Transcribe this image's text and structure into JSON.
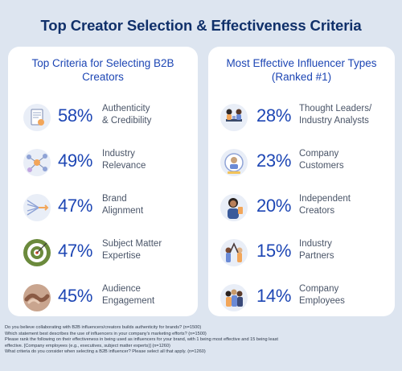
{
  "title": "Top Creator Selection & Effectiveness Criteria",
  "chart_data": [
    {
      "type": "table",
      "title_lines": [
        "Top Criteria for Selecting B2B",
        "Creators"
      ],
      "rows": [
        {
          "value": 58,
          "display": "58%",
          "label_lines": [
            "Authenticity",
            "& Credibility"
          ],
          "icon": "document-check-icon"
        },
        {
          "value": 49,
          "display": "49%",
          "label_lines": [
            "Industry",
            "Relevance"
          ],
          "icon": "network-nodes-icon"
        },
        {
          "value": 47,
          "display": "47%",
          "label_lines": [
            "Brand",
            "Alignment"
          ],
          "icon": "arrows-align-icon"
        },
        {
          "value": 47,
          "display": "47%",
          "label_lines": [
            "Subject Matter",
            "Expertise"
          ],
          "icon": "target-arrow-icon"
        },
        {
          "value": 45,
          "display": "45%",
          "label_lines": [
            "Audience",
            "Engagement"
          ],
          "icon": "handshake-icon"
        }
      ]
    },
    {
      "type": "table",
      "title_lines": [
        "Most Effective Influencer Types",
        "(Ranked #1)"
      ],
      "rows": [
        {
          "value": 28,
          "display": "28%",
          "label_lines": [
            "Thought Leaders/",
            "Industry Analysts"
          ],
          "icon": "people-table-icon"
        },
        {
          "value": 23,
          "display": "23%",
          "label_lines": [
            "Company",
            "Customers"
          ],
          "icon": "customer-badge-icon"
        },
        {
          "value": 20,
          "display": "20%",
          "label_lines": [
            "Independent",
            "Creators"
          ],
          "icon": "creator-person-icon"
        },
        {
          "value": 15,
          "display": "15%",
          "label_lines": [
            "Industry",
            "Partners"
          ],
          "icon": "partners-highfive-icon"
        },
        {
          "value": 14,
          "display": "14%",
          "label_lines": [
            "Company",
            "Employees"
          ],
          "icon": "employees-group-icon"
        }
      ]
    }
  ],
  "footnotes": [
    "Do you believe collaborating with B2B influencers/creators builds authenticity for brands? (n=1500)",
    "Which statement best describes the use of influencers in your company's marketing efforts? (n=1500)",
    "Please rank the following on their effectiveness in being used as influencers for your brand, with 1 being most effective and 15 being least",
    "effective. [Company employees (e.g., executives, subject matter experts)] (n=1260)",
    "What criteria do you consider when selecting a B2B influencer? Please select all that apply. (n=1260)"
  ],
  "colors": {
    "accent": "#1d46b4",
    "background": "#dde5f0",
    "title": "#10306a"
  }
}
